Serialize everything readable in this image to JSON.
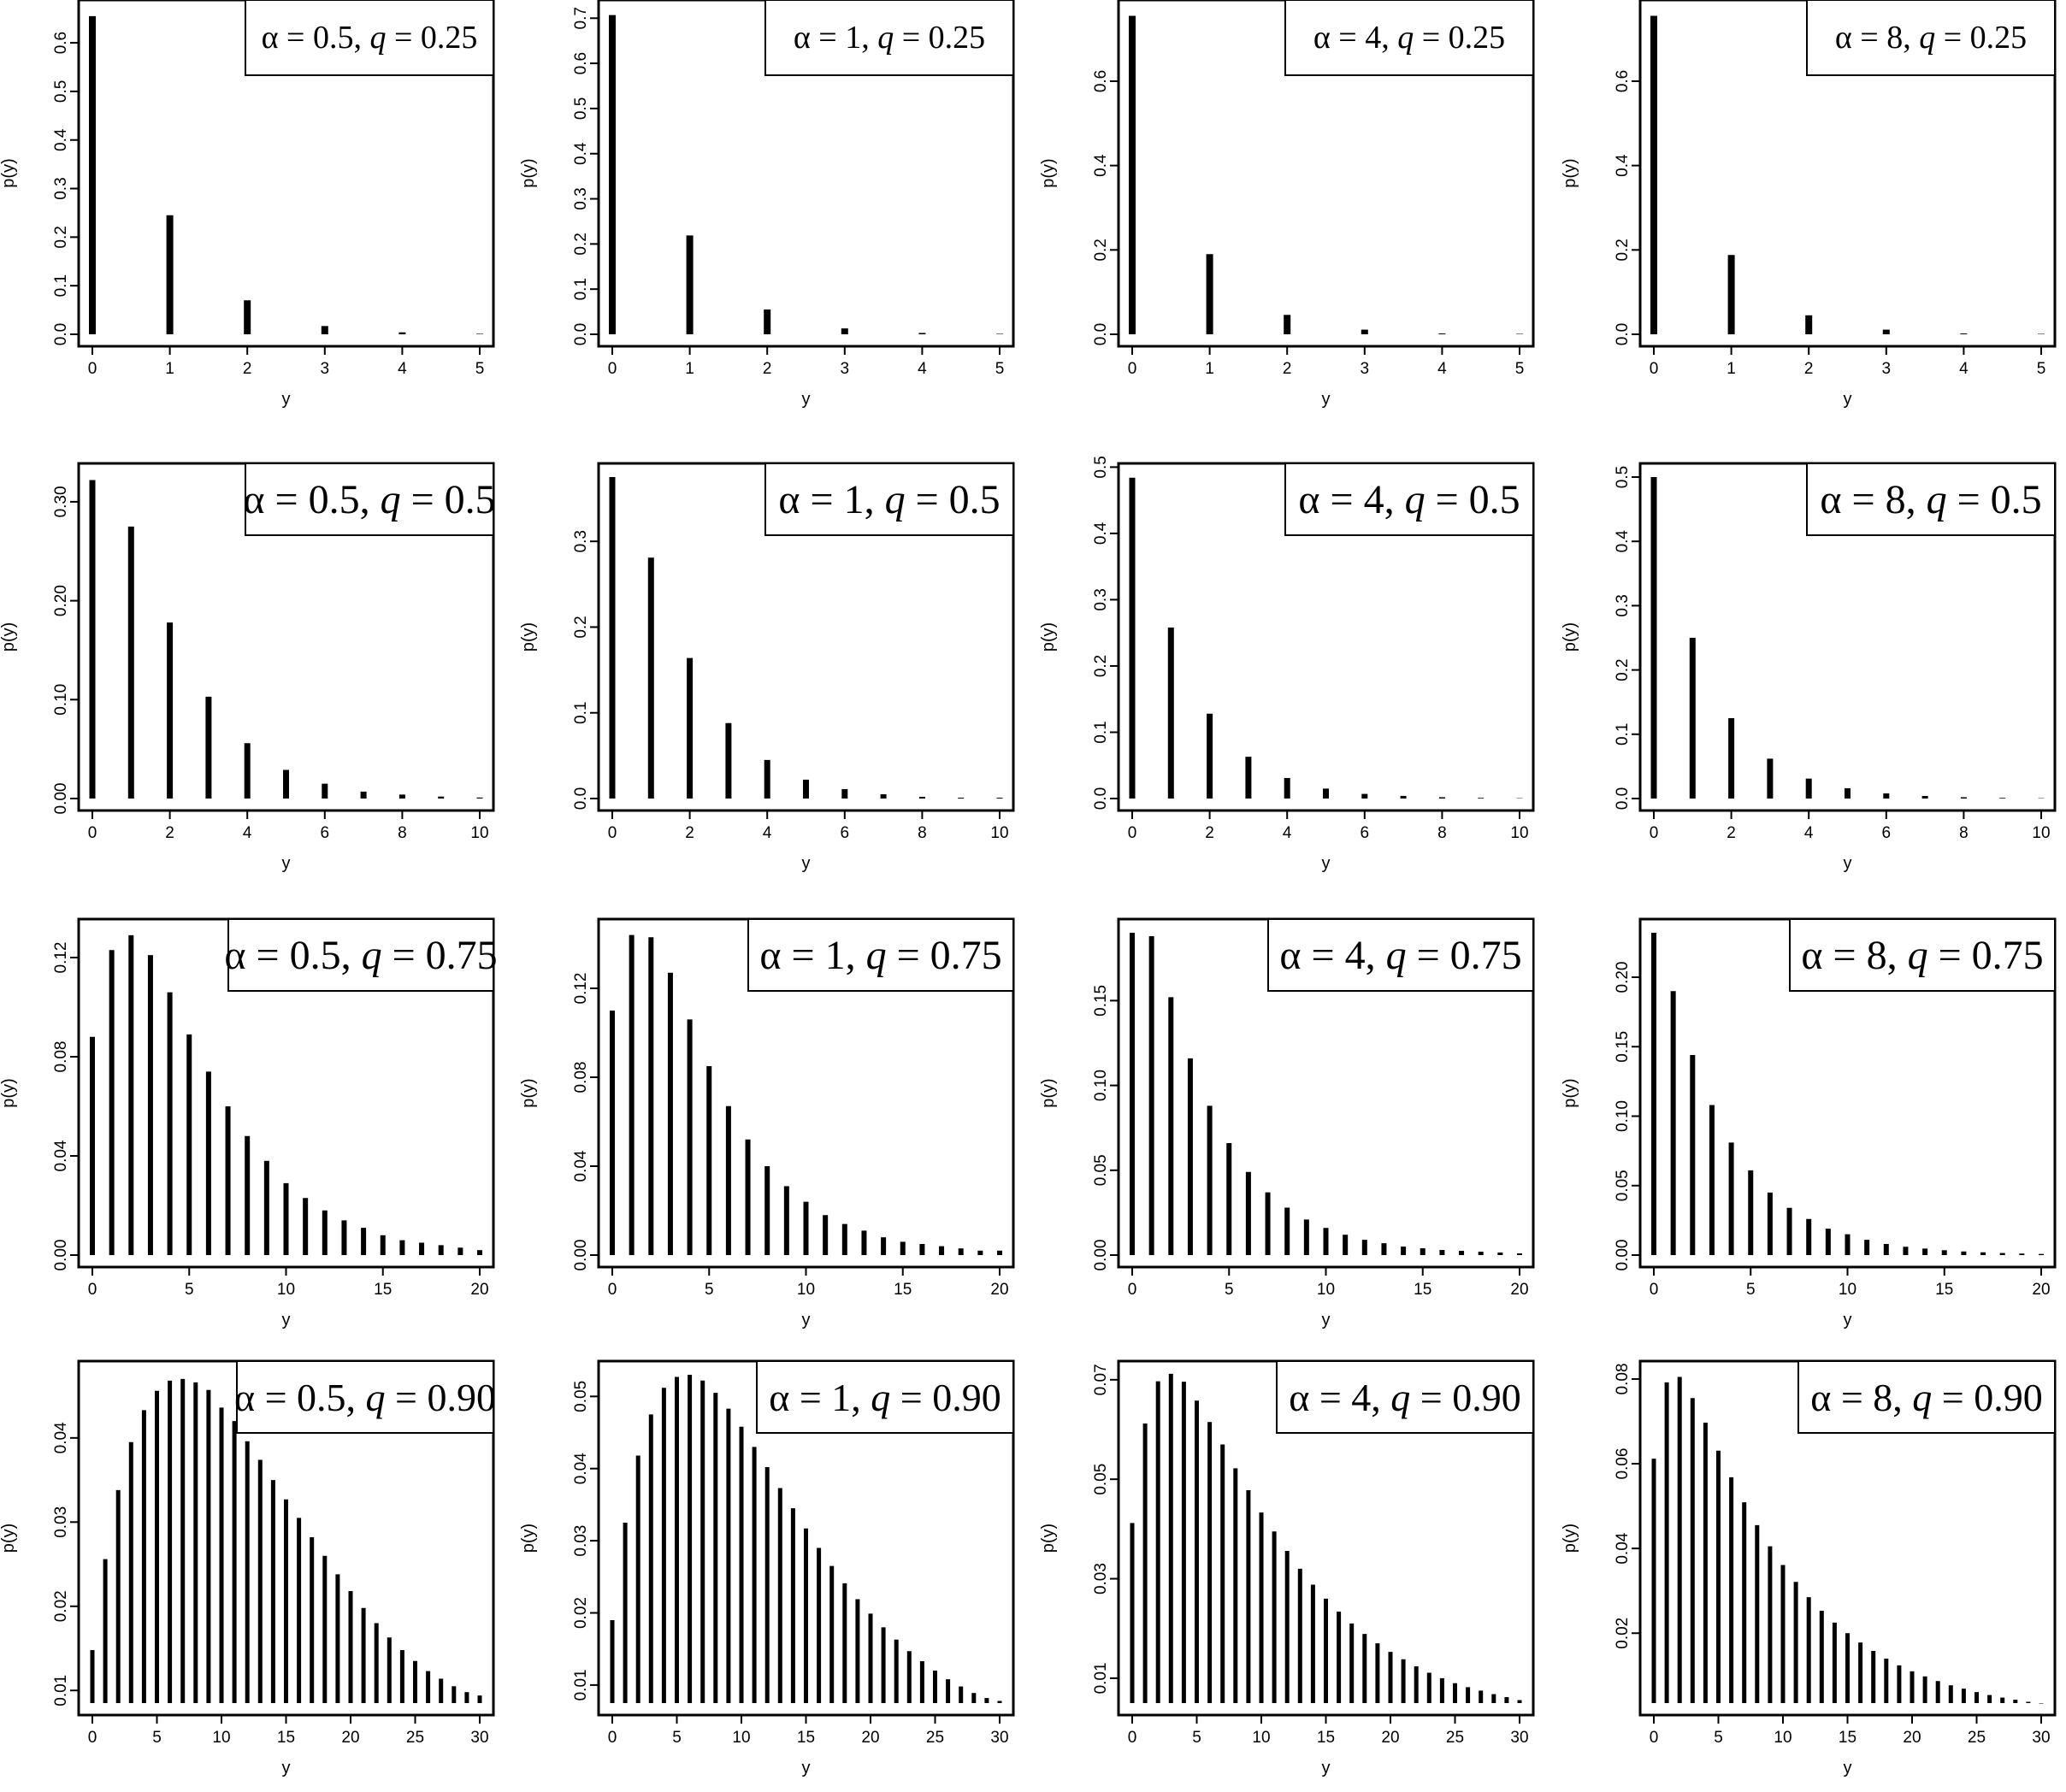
{
  "chart_data": [
    {
      "type": "bar",
      "title": "",
      "legend": {
        "alpha": "0.5",
        "q": "0.25"
      },
      "xlabel": "y",
      "ylabel": "p(y)",
      "xlim": [
        0,
        5
      ],
      "ylim": [
        0,
        0.66
      ],
      "xticks": [
        0,
        1,
        2,
        3,
        4,
        5
      ],
      "yticks": [
        "0.0",
        "0.1",
        "0.2",
        "0.3",
        "0.4",
        "0.5",
        "0.6"
      ],
      "x": [
        0,
        1,
        2,
        3,
        4,
        5
      ],
      "values": [
        0.655,
        0.245,
        0.07,
        0.017,
        0.004,
        0.001
      ]
    },
    {
      "type": "bar",
      "title": "",
      "legend": {
        "alpha": "1",
        "q": "0.25"
      },
      "xlabel": "y",
      "ylabel": "p(y)",
      "xlim": [
        0,
        5
      ],
      "ylim": [
        0,
        0.71
      ],
      "xticks": [
        0,
        1,
        2,
        3,
        4,
        5
      ],
      "yticks": [
        "0.0",
        "0.1",
        "0.2",
        "0.3",
        "0.4",
        "0.5",
        "0.6",
        "0.7"
      ],
      "x": [
        0,
        1,
        2,
        3,
        4,
        5
      ],
      "values": [
        0.707,
        0.219,
        0.055,
        0.013,
        0.003,
        0.001
      ]
    },
    {
      "type": "bar",
      "title": "",
      "legend": {
        "alpha": "4",
        "q": "0.25"
      },
      "xlabel": "y",
      "ylabel": "p(y)",
      "xlim": [
        0,
        5
      ],
      "ylim": [
        0,
        0.76
      ],
      "xticks": [
        0,
        1,
        2,
        3,
        4,
        5
      ],
      "yticks": [
        "0.0",
        "0.2",
        "0.4",
        "0.6"
      ],
      "x": [
        0,
        1,
        2,
        3,
        4,
        5
      ],
      "values": [
        0.755,
        0.19,
        0.046,
        0.011,
        0.002,
        0.001
      ]
    },
    {
      "type": "bar",
      "title": "",
      "legend": {
        "alpha": "8",
        "q": "0.25"
      },
      "xlabel": "y",
      "ylabel": "p(y)",
      "xlim": [
        0,
        5
      ],
      "ylim": [
        0,
        0.76
      ],
      "xticks": [
        0,
        1,
        2,
        3,
        4,
        5
      ],
      "yticks": [
        "0.0",
        "0.2",
        "0.4",
        "0.6"
      ],
      "x": [
        0,
        1,
        2,
        3,
        4,
        5
      ],
      "values": [
        0.755,
        0.188,
        0.045,
        0.011,
        0.002,
        0.001
      ]
    },
    {
      "type": "bar",
      "title": "",
      "legend": {
        "alpha": "0.5",
        "q": "0.5"
      },
      "xlabel": "y",
      "ylabel": "p(y)",
      "xlim": [
        0,
        10
      ],
      "ylim": [
        0,
        0.325
      ],
      "xticks": [
        0,
        2,
        4,
        6,
        8,
        10
      ],
      "yticks": [
        "0.00",
        "0.10",
        "0.20",
        "0.30"
      ],
      "x": [
        0,
        1,
        2,
        3,
        4,
        5,
        6,
        7,
        8,
        9,
        10
      ],
      "values": [
        0.322,
        0.275,
        0.178,
        0.103,
        0.056,
        0.029,
        0.015,
        0.007,
        0.004,
        0.002,
        0.001
      ]
    },
    {
      "type": "bar",
      "title": "",
      "legend": {
        "alpha": "1",
        "q": "0.5"
      },
      "xlabel": "y",
      "ylabel": "p(y)",
      "xlim": [
        0,
        10
      ],
      "ylim": [
        0,
        0.375
      ],
      "xticks": [
        0,
        2,
        4,
        6,
        8,
        10
      ],
      "yticks": [
        "0.0",
        "0.1",
        "0.2",
        "0.3"
      ],
      "x": [
        0,
        1,
        2,
        3,
        4,
        5,
        6,
        7,
        8,
        9,
        10
      ],
      "values": [
        0.375,
        0.281,
        0.164,
        0.088,
        0.045,
        0.022,
        0.011,
        0.005,
        0.002,
        0.001,
        0.001
      ]
    },
    {
      "type": "bar",
      "title": "",
      "legend": {
        "alpha": "4",
        "q": "0.5"
      },
      "xlabel": "y",
      "ylabel": "p(y)",
      "xlim": [
        0,
        10
      ],
      "ylim": [
        0,
        0.485
      ],
      "xticks": [
        0,
        2,
        4,
        6,
        8,
        10
      ],
      "yticks": [
        "0.0",
        "0.1",
        "0.2",
        "0.3",
        "0.4",
        "0.5"
      ],
      "x": [
        0,
        1,
        2,
        3,
        4,
        5,
        6,
        7,
        8,
        9,
        10
      ],
      "values": [
        0.484,
        0.258,
        0.128,
        0.063,
        0.031,
        0.015,
        0.007,
        0.004,
        0.002,
        0.001,
        0.0005
      ]
    },
    {
      "type": "bar",
      "title": "",
      "legend": {
        "alpha": "8",
        "q": "0.5"
      },
      "xlabel": "y",
      "ylabel": "p(y)",
      "xlim": [
        0,
        10
      ],
      "ylim": [
        0,
        0.5
      ],
      "xticks": [
        0,
        2,
        4,
        6,
        8,
        10
      ],
      "yticks": [
        "0.0",
        "0.1",
        "0.2",
        "0.3",
        "0.4",
        "0.5"
      ],
      "x": [
        0,
        1,
        2,
        3,
        4,
        5,
        6,
        7,
        8,
        9,
        10
      ],
      "values": [
        0.5,
        0.25,
        0.125,
        0.062,
        0.031,
        0.016,
        0.008,
        0.004,
        0.002,
        0.001,
        0.0005
      ]
    },
    {
      "type": "bar",
      "title": "",
      "legend": {
        "alpha": "0.5",
        "q": "0.75"
      },
      "xlabel": "y",
      "ylabel": "p(y)",
      "xlim": [
        0,
        20
      ],
      "ylim": [
        0,
        0.13
      ],
      "xticks": [
        0,
        5,
        10,
        15,
        20
      ],
      "yticks": [
        "0.00",
        "0.04",
        "0.08",
        "0.12"
      ],
      "x": [
        0,
        1,
        2,
        3,
        4,
        5,
        6,
        7,
        8,
        9,
        10,
        11,
        12,
        13,
        14,
        15,
        16,
        17,
        18,
        19,
        20
      ],
      "values": [
        0.088,
        0.123,
        0.129,
        0.121,
        0.106,
        0.089,
        0.074,
        0.06,
        0.048,
        0.038,
        0.029,
        0.023,
        0.018,
        0.014,
        0.011,
        0.008,
        0.006,
        0.005,
        0.004,
        0.003,
        0.002
      ]
    },
    {
      "type": "bar",
      "title": "",
      "legend": {
        "alpha": "1",
        "q": "0.75"
      },
      "xlabel": "y",
      "ylabel": "p(y)",
      "xlim": [
        0,
        20
      ],
      "ylim": [
        0,
        0.145
      ],
      "xticks": [
        0,
        5,
        10,
        15,
        20
      ],
      "yticks": [
        "0.00",
        "0.04",
        "0.08",
        "0.12"
      ],
      "x": [
        0,
        1,
        2,
        3,
        4,
        5,
        6,
        7,
        8,
        9,
        10,
        11,
        12,
        13,
        14,
        15,
        16,
        17,
        18,
        19,
        20
      ],
      "values": [
        0.11,
        0.144,
        0.143,
        0.127,
        0.106,
        0.085,
        0.067,
        0.052,
        0.04,
        0.031,
        0.024,
        0.018,
        0.014,
        0.011,
        0.008,
        0.006,
        0.005,
        0.004,
        0.003,
        0.002,
        0.002
      ]
    },
    {
      "type": "bar",
      "title": "",
      "legend": {
        "alpha": "4",
        "q": "0.75"
      },
      "xlabel": "y",
      "ylabel": "p(y)",
      "xlim": [
        0,
        20
      ],
      "ylim": [
        0,
        0.19
      ],
      "xticks": [
        0,
        5,
        10,
        15,
        20
      ],
      "yticks": [
        "0.00",
        "0.05",
        "0.10",
        "0.15"
      ],
      "x": [
        0,
        1,
        2,
        3,
        4,
        5,
        6,
        7,
        8,
        9,
        10,
        11,
        12,
        13,
        14,
        15,
        16,
        17,
        18,
        19,
        20
      ],
      "values": [
        0.19,
        0.188,
        0.152,
        0.116,
        0.088,
        0.066,
        0.049,
        0.037,
        0.028,
        0.021,
        0.016,
        0.012,
        0.009,
        0.007,
        0.005,
        0.004,
        0.003,
        0.0025,
        0.002,
        0.0015,
        0.001
      ]
    },
    {
      "type": "bar",
      "title": "",
      "legend": {
        "alpha": "8",
        "q": "0.75"
      },
      "xlabel": "y",
      "ylabel": "p(y)",
      "xlim": [
        0,
        20
      ],
      "ylim": [
        0,
        0.232
      ],
      "xticks": [
        0,
        5,
        10,
        15,
        20
      ],
      "yticks": [
        "0.00",
        "0.05",
        "0.10",
        "0.15",
        "0.20"
      ],
      "x": [
        0,
        1,
        2,
        3,
        4,
        5,
        6,
        7,
        8,
        9,
        10,
        11,
        12,
        13,
        14,
        15,
        16,
        17,
        18,
        19,
        20
      ],
      "values": [
        0.232,
        0.19,
        0.144,
        0.108,
        0.081,
        0.061,
        0.045,
        0.034,
        0.026,
        0.019,
        0.015,
        0.011,
        0.008,
        0.006,
        0.0047,
        0.0035,
        0.0026,
        0.002,
        0.0015,
        0.0011,
        0.0008
      ]
    },
    {
      "type": "bar",
      "title": "",
      "legend": {
        "alpha": "0.5",
        "q": "0.90"
      },
      "xlabel": "y",
      "ylabel": "p(y)",
      "xlim": [
        0,
        30
      ],
      "ylim": [
        0.0085,
        0.0475
      ],
      "xticks": [
        0,
        5,
        10,
        15,
        20,
        25,
        30
      ],
      "yticks": [
        "0.01",
        "0.02",
        "0.03",
        "0.04"
      ],
      "x": [
        0,
        1,
        2,
        3,
        4,
        5,
        6,
        7,
        8,
        9,
        10,
        11,
        12,
        13,
        14,
        15,
        16,
        17,
        18,
        19,
        20,
        21,
        22,
        23,
        24,
        25,
        26,
        27,
        28,
        29,
        30
      ],
      "values": [
        0.0148,
        0.0256,
        0.0338,
        0.0395,
        0.0433,
        0.0456,
        0.0468,
        0.047,
        0.0466,
        0.0457,
        0.0436,
        0.042,
        0.0396,
        0.0374,
        0.035,
        0.0327,
        0.0305,
        0.0282,
        0.026,
        0.0238,
        0.0218,
        0.0198,
        0.018,
        0.0163,
        0.0148,
        0.0135,
        0.0123,
        0.0114,
        0.0105,
        0.0098,
        0.0094
      ]
    },
    {
      "type": "bar",
      "title": "",
      "legend": {
        "alpha": "1",
        "q": "0.90"
      },
      "xlabel": "y",
      "ylabel": "p(y)",
      "xlim": [
        0,
        30
      ],
      "ylim": [
        0.0075,
        0.053
      ],
      "xticks": [
        0,
        5,
        10,
        15,
        20,
        25,
        30
      ],
      "yticks": [
        "0.01",
        "0.02",
        "0.03",
        "0.04",
        "0.05"
      ],
      "x": [
        0,
        1,
        2,
        3,
        4,
        5,
        6,
        7,
        8,
        9,
        10,
        11,
        12,
        13,
        14,
        15,
        16,
        17,
        18,
        19,
        20,
        21,
        22,
        23,
        24,
        25,
        26,
        27,
        28,
        29,
        30
      ],
      "values": [
        0.019,
        0.0325,
        0.0418,
        0.0475,
        0.0512,
        0.0527,
        0.053,
        0.0522,
        0.0505,
        0.0483,
        0.0458,
        0.043,
        0.0402,
        0.0373,
        0.0345,
        0.0317,
        0.029,
        0.0265,
        0.0241,
        0.0219,
        0.0199,
        0.018,
        0.0163,
        0.0147,
        0.0133,
        0.012,
        0.0108,
        0.0098,
        0.0089,
        0.0082,
        0.0078
      ]
    },
    {
      "type": "bar",
      "title": "",
      "legend": {
        "alpha": "4",
        "q": "0.90"
      },
      "xlabel": "y",
      "ylabel": "p(y)",
      "xlim": [
        0,
        30
      ],
      "ylim": [
        0.005,
        0.071
      ],
      "xticks": [
        0,
        5,
        10,
        15,
        20,
        25,
        30
      ],
      "yticks": [
        "0.01",
        "0.03",
        "0.05",
        "0.07"
      ],
      "x": [
        0,
        1,
        2,
        3,
        4,
        5,
        6,
        7,
        8,
        9,
        10,
        11,
        12,
        13,
        14,
        15,
        16,
        17,
        18,
        19,
        20,
        21,
        22,
        23,
        24,
        25,
        26,
        27,
        28,
        29,
        30
      ],
      "values": [
        0.0412,
        0.0612,
        0.0697,
        0.0712,
        0.0696,
        0.0658,
        0.0615,
        0.057,
        0.0522,
        0.0478,
        0.0433,
        0.0395,
        0.0356,
        0.032,
        0.0288,
        0.026,
        0.0234,
        0.021,
        0.0189,
        0.017,
        0.0153,
        0.0138,
        0.0124,
        0.0111,
        0.01,
        0.009,
        0.0082,
        0.0075,
        0.0068,
        0.0062,
        0.0056
      ]
    },
    {
      "type": "bar",
      "title": "",
      "legend": {
        "alpha": "8",
        "q": "0.90"
      },
      "xlabel": "y",
      "ylabel": "p(y)",
      "xlim": [
        0,
        30
      ],
      "ylim": [
        0.0035,
        0.081
      ],
      "xticks": [
        0,
        5,
        10,
        15,
        20,
        25,
        30
      ],
      "yticks": [
        "0.02",
        "0.04",
        "0.06",
        "0.08"
      ],
      "x": [
        0,
        1,
        2,
        3,
        4,
        5,
        6,
        7,
        8,
        9,
        10,
        11,
        12,
        13,
        14,
        15,
        16,
        17,
        18,
        19,
        20,
        21,
        22,
        23,
        24,
        25,
        26,
        27,
        28,
        29,
        30
      ],
      "values": [
        0.0612,
        0.0792,
        0.0805,
        0.0755,
        0.0697,
        0.0631,
        0.0568,
        0.0509,
        0.0455,
        0.0405,
        0.0361,
        0.0321,
        0.0285,
        0.0253,
        0.0225,
        0.02,
        0.0178,
        0.0158,
        0.014,
        0.0124,
        0.011,
        0.0098,
        0.0087,
        0.0077,
        0.0069,
        0.0061,
        0.0054,
        0.0048,
        0.0043,
        0.0038,
        0.0034
      ]
    }
  ]
}
